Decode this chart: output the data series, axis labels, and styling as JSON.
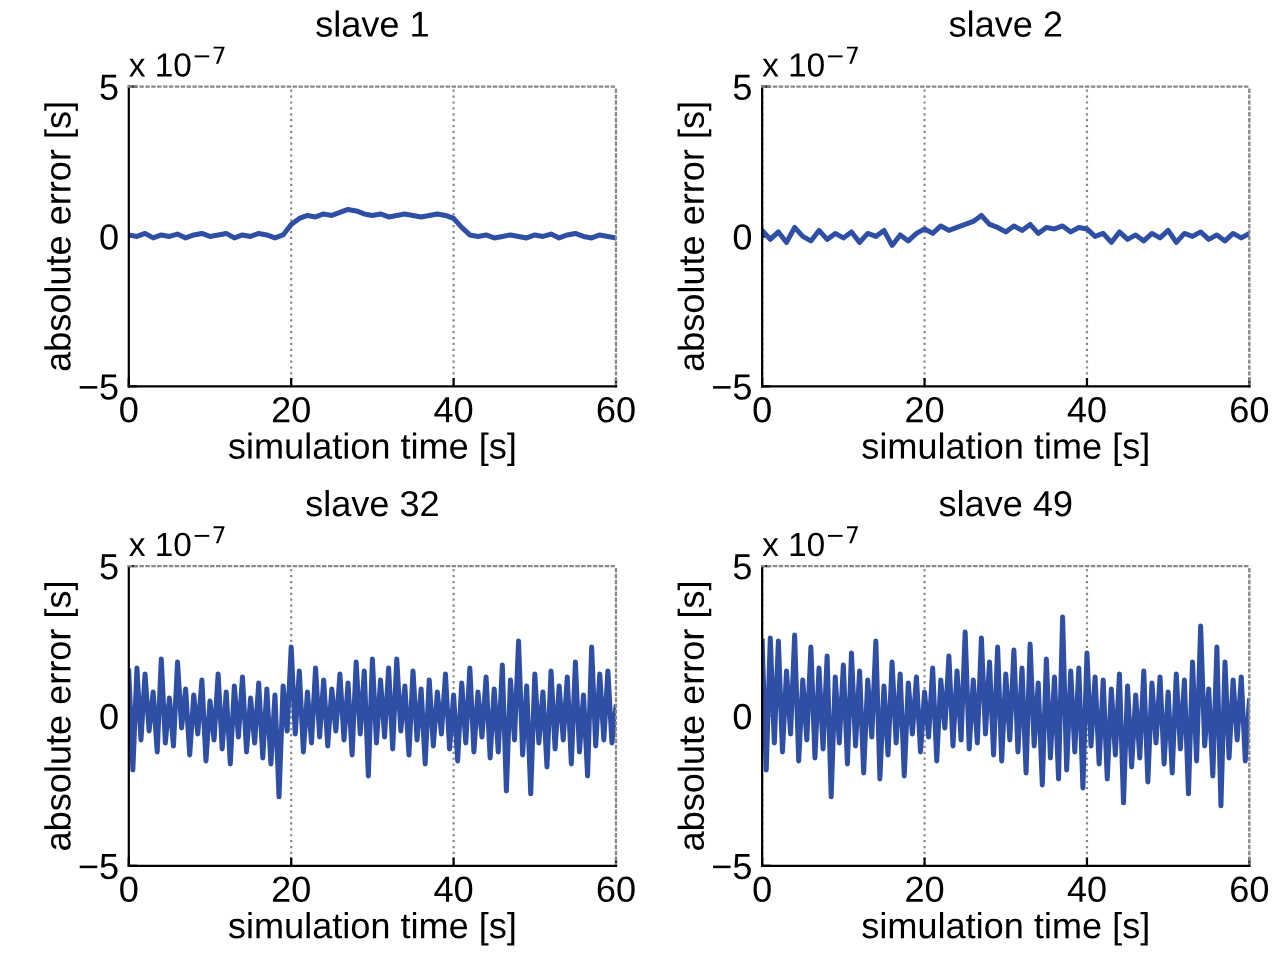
{
  "chart_data": [
    {
      "type": "line",
      "title": "slave 1",
      "xlabel": "simulation time [s]",
      "ylabel": "absolute error [s]",
      "annotations": [
        "x 10$^{−7}$"
      ],
      "xlim": [
        0,
        60
      ],
      "ylim": [
        -5,
        5
      ],
      "xticks": [
        0,
        20,
        40,
        60
      ],
      "yticks": [
        -5,
        0,
        5
      ],
      "grid": "x",
      "x": [
        0,
        1,
        2,
        3,
        4,
        5,
        6,
        7,
        8,
        9,
        10,
        11,
        12,
        13,
        14,
        15,
        16,
        17,
        18,
        19,
        20,
        21,
        22,
        23,
        24,
        25,
        26,
        27,
        28,
        29,
        30,
        31,
        32,
        33,
        34,
        35,
        36,
        37,
        38,
        39,
        40,
        41,
        42,
        43,
        44,
        45,
        46,
        47,
        48,
        49,
        50,
        51,
        52,
        53,
        54,
        55,
        56,
        57,
        58,
        59,
        60
      ],
      "series": [
        {
          "color": "#2f4fa5",
          "values": [
            0.05,
            0,
            0.1,
            -0.05,
            0.05,
            0,
            0.08,
            -0.05,
            0.05,
            0.1,
            0,
            0.05,
            0.1,
            -0.05,
            0.05,
            0,
            0.1,
            0.05,
            -0.05,
            0.05,
            0.4,
            0.6,
            0.7,
            0.65,
            0.75,
            0.7,
            0.8,
            0.9,
            0.85,
            0.75,
            0.7,
            0.75,
            0.65,
            0.7,
            0.75,
            0.7,
            0.65,
            0.7,
            0.75,
            0.7,
            0.6,
            0.3,
            0.05,
            0,
            0.05,
            -0.05,
            0,
            0.05,
            0,
            -0.05,
            0.05,
            0,
            0.08,
            -0.05,
            0.05,
            0.1,
            0,
            -0.05,
            0.05,
            0,
            -0.05
          ]
        }
      ]
    },
    {
      "type": "line",
      "title": "slave 2",
      "xlabel": "simulation time [s]",
      "ylabel": "absolute error [s]",
      "annotations": [
        "x 10$^{−7}$"
      ],
      "xlim": [
        0,
        60
      ],
      "ylim": [
        -5,
        5
      ],
      "xticks": [
        0,
        20,
        40,
        60
      ],
      "yticks": [
        -5,
        0,
        5
      ],
      "grid": "x",
      "x": [
        0,
        1,
        2,
        3,
        4,
        5,
        6,
        7,
        8,
        9,
        10,
        11,
        12,
        13,
        14,
        15,
        16,
        17,
        18,
        19,
        20,
        21,
        22,
        23,
        24,
        25,
        26,
        27,
        28,
        29,
        30,
        31,
        32,
        33,
        34,
        35,
        36,
        37,
        38,
        39,
        40,
        41,
        42,
        43,
        44,
        45,
        46,
        47,
        48,
        49,
        50,
        51,
        52,
        53,
        54,
        55,
        56,
        57,
        58,
        59,
        60
      ],
      "series": [
        {
          "color": "#2f4fa5",
          "values": [
            0.2,
            -0.1,
            0.15,
            -0.2,
            0.3,
            0,
            -0.15,
            0.2,
            -0.1,
            0.1,
            -0.05,
            0.15,
            -0.2,
            0.1,
            0,
            0.2,
            -0.3,
            0.05,
            -0.15,
            0.1,
            0.25,
            0.1,
            0.35,
            0.2,
            0.3,
            0.4,
            0.5,
            0.7,
            0.4,
            0.3,
            0.15,
            0.35,
            0.2,
            0.4,
            0.1,
            0.3,
            0.25,
            0.35,
            0.15,
            0.3,
            0.25,
            0,
            0.1,
            -0.2,
            0.15,
            -0.1,
            0.05,
            -0.15,
            0.1,
            -0.05,
            0.2,
            -0.2,
            0.1,
            0,
            0.15,
            -0.1,
            0.05,
            -0.15,
            0.1,
            -0.05,
            0.1
          ]
        }
      ]
    },
    {
      "type": "line",
      "title": "slave 32",
      "xlabel": "simulation time [s]",
      "ylabel": "absolute error [s]",
      "annotations": [
        "x 10$^{−7}$"
      ],
      "xlim": [
        0,
        60
      ],
      "ylim": [
        -5,
        5
      ],
      "xticks": [
        0,
        20,
        40,
        60
      ],
      "yticks": [
        -5,
        0,
        5
      ],
      "grid": "x",
      "x": [
        0,
        0.5,
        1,
        1.5,
        2,
        2.5,
        3,
        3.5,
        4,
        4.5,
        5,
        5.5,
        6,
        6.5,
        7,
        7.5,
        8,
        8.5,
        9,
        9.5,
        10,
        10.5,
        11,
        11.5,
        12,
        12.5,
        13,
        13.5,
        14,
        14.5,
        15,
        15.5,
        16,
        16.5,
        17,
        17.5,
        18,
        18.5,
        19,
        19.5,
        20,
        20.5,
        21,
        21.5,
        22,
        22.5,
        23,
        23.5,
        24,
        24.5,
        25,
        25.5,
        26,
        26.5,
        27,
        27.5,
        28,
        28.5,
        29,
        29.5,
        30,
        30.5,
        31,
        31.5,
        32,
        32.5,
        33,
        33.5,
        34,
        34.5,
        35,
        35.5,
        36,
        36.5,
        37,
        37.5,
        38,
        38.5,
        39,
        39.5,
        40,
        40.5,
        41,
        41.5,
        42,
        42.5,
        43,
        43.5,
        44,
        44.5,
        45,
        45.5,
        46,
        46.5,
        47,
        47.5,
        48,
        48.5,
        49,
        49.5,
        50,
        50.5,
        51,
        51.5,
        52,
        52.5,
        53,
        53.5,
        54,
        54.5,
        55,
        55.5,
        56,
        56.5,
        57,
        57.5,
        58,
        58.5,
        59,
        59.5,
        60
      ],
      "series": [
        {
          "color": "#2f4fa5",
          "values": [
            1.5,
            -1.8,
            1.6,
            -0.8,
            1.4,
            -0.5,
            0.8,
            -1.2,
            1.9,
            -0.9,
            0.6,
            -1.0,
            1.8,
            -0.4,
            0.9,
            -1.3,
            0.7,
            -0.6,
            1.2,
            -1.5,
            0.5,
            -0.8,
            1.4,
            -1.1,
            0.8,
            -1.6,
            1.0,
            -0.7,
            1.3,
            -1.2,
            0.6,
            -0.9,
            1.1,
            -1.4,
            0.9,
            -1.6,
            0.7,
            -2.7,
            1.0,
            -0.5,
            2.3,
            -0.6,
            1.5,
            -1.2,
            0.8,
            -0.9,
            1.6,
            -0.7,
            1.2,
            -1.0,
            0.9,
            -0.5,
            1.4,
            -0.8,
            1.1,
            -1.3,
            1.8,
            -0.6,
            1.5,
            -2.0,
            1.9,
            -0.9,
            1.2,
            -0.7,
            1.6,
            -1.1,
            1.9,
            -0.5,
            1.0,
            -1.3,
            1.5,
            -0.8,
            0.9,
            -1.6,
            1.2,
            -1.0,
            0.8,
            -0.6,
            1.4,
            -1.1,
            0.7,
            -1.5,
            1.1,
            -0.9,
            1.6,
            -1.2,
            0.8,
            -0.7,
            1.3,
            -1.4,
            0.9,
            -1.2,
            1.7,
            -2.5,
            1.2,
            -0.8,
            2.5,
            -1.3,
            1.0,
            -2.6,
            1.4,
            -0.9,
            0.8,
            -1.7,
            1.5,
            -1.1,
            1.0,
            -0.8,
            1.3,
            -1.6,
            1.8,
            -1.2,
            0.7,
            -2.0,
            2.3,
            -1.0,
            1.4,
            -0.8,
            1.5,
            -0.9,
            0.3
          ]
        }
      ]
    },
    {
      "type": "line",
      "title": "slave 49",
      "xlabel": "simulation time [s]",
      "ylabel": "absolute error [s]",
      "annotations": [
        "x 10$^{−7}$"
      ],
      "xlim": [
        0,
        60
      ],
      "ylim": [
        -5,
        5
      ],
      "xticks": [
        0,
        20,
        40,
        60
      ],
      "yticks": [
        -5,
        0,
        5
      ],
      "grid": "x",
      "x": [
        0,
        0.5,
        1,
        1.5,
        2,
        2.5,
        3,
        3.5,
        4,
        4.5,
        5,
        5.5,
        6,
        6.5,
        7,
        7.5,
        8,
        8.5,
        9,
        9.5,
        10,
        10.5,
        11,
        11.5,
        12,
        12.5,
        13,
        13.5,
        14,
        14.5,
        15,
        15.5,
        16,
        16.5,
        17,
        17.5,
        18,
        18.5,
        19,
        19.5,
        20,
        20.5,
        21,
        21.5,
        22,
        22.5,
        23,
        23.5,
        24,
        24.5,
        25,
        25.5,
        26,
        26.5,
        27,
        27.5,
        28,
        28.5,
        29,
        29.5,
        30,
        30.5,
        31,
        31.5,
        32,
        32.5,
        33,
        33.5,
        34,
        34.5,
        35,
        35.5,
        36,
        36.5,
        37,
        37.5,
        38,
        38.5,
        39,
        39.5,
        40,
        40.5,
        41,
        41.5,
        42,
        42.5,
        43,
        43.5,
        44,
        44.5,
        45,
        45.5,
        46,
        46.5,
        47,
        47.5,
        48,
        48.5,
        49,
        49.5,
        50,
        50.5,
        51,
        51.5,
        52,
        52.5,
        53,
        53.5,
        54,
        54.5,
        55,
        55.5,
        56,
        56.5,
        57,
        57.5,
        58,
        58.5,
        59,
        59.5,
        60
      ],
      "series": [
        {
          "color": "#2f4fa5",
          "values": [
            2.5,
            -1.8,
            2.6,
            -0.9,
            2.5,
            -1.2,
            1.5,
            -0.6,
            2.7,
            -1.5,
            1.2,
            -0.8,
            2.3,
            -1.4,
            1.6,
            -1.1,
            2.0,
            -2.7,
            1.3,
            -0.9,
            1.7,
            -1.6,
            2.1,
            -1.0,
            1.5,
            -1.9,
            1.2,
            -0.7,
            2.5,
            -2.1,
            1.0,
            -1.3,
            1.8,
            -0.9,
            1.4,
            -2.0,
            1.1,
            -0.6,
            1.3,
            -1.2,
            0.8,
            -0.7,
            1.6,
            -1.5,
            1.2,
            -0.4,
            2.0,
            -1.0,
            1.5,
            -0.8,
            2.8,
            -1.1,
            1.2,
            -0.9,
            2.6,
            -0.6,
            1.8,
            -1.3,
            2.3,
            -1.5,
            1.4,
            -0.8,
            2.2,
            -1.2,
            1.6,
            -1.9,
            2.4,
            -1.0,
            1.1,
            -2.3,
            1.9,
            -1.4,
            1.3,
            -2.1,
            3.3,
            -1.8,
            1.5,
            -1.2,
            1.6,
            -2.4,
            2.1,
            -1.0,
            1.3,
            -1.6,
            1.2,
            -2.1,
            0.9,
            -1.3,
            1.4,
            -2.9,
            1.0,
            -1.7,
            0.7,
            -1.4,
            1.5,
            -2.2,
            1.1,
            -0.9,
            1.3,
            -1.6,
            0.8,
            -1.9,
            1.4,
            -1.1,
            1.2,
            -2.6,
            1.8,
            -1.5,
            3.0,
            -1.0,
            0.9,
            -2.0,
            2.3,
            -3.0,
            1.8,
            -1.4,
            1.2,
            -0.8,
            1.3,
            -1.5,
            0.5
          ]
        }
      ]
    }
  ]
}
